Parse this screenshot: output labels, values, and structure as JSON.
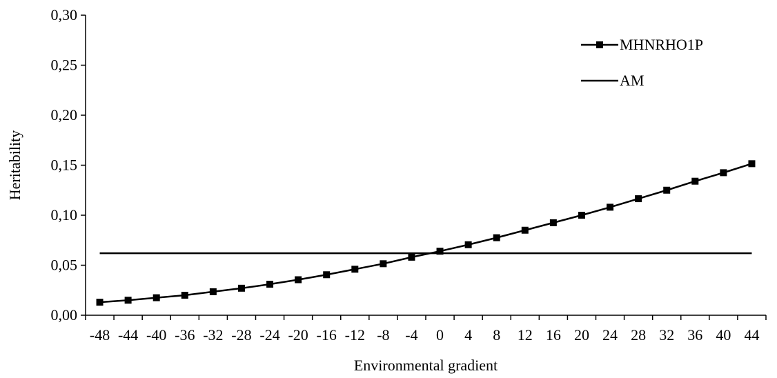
{
  "chart_data": {
    "type": "line",
    "title": "",
    "xlabel": "Environmental gradient",
    "ylabel": "Heritability",
    "ylim": [
      0,
      0.3
    ],
    "yticks": [
      "0,00",
      "0,05",
      "0,10",
      "0,15",
      "0,20",
      "0,25",
      "0,30"
    ],
    "yticks_values": [
      0,
      0.05,
      0.1,
      0.15,
      0.2,
      0.25,
      0.3
    ],
    "categories": [
      "-48",
      "-44",
      "-40",
      "-36",
      "-32",
      "-28",
      "-24",
      "-20",
      "-16",
      "-12",
      "-8",
      "-4",
      "0",
      "4",
      "8",
      "12",
      "16",
      "20",
      "24",
      "28",
      "32",
      "36",
      "40",
      "44"
    ],
    "series": [
      {
        "name": "MHNRHO1P",
        "marker": "square",
        "values": [
          0.013,
          0.015,
          0.0175,
          0.02,
          0.0235,
          0.027,
          0.031,
          0.0355,
          0.0405,
          0.046,
          0.0515,
          0.058,
          0.064,
          0.0705,
          0.0775,
          0.085,
          0.0925,
          0.1,
          0.108,
          0.1165,
          0.125,
          0.134,
          0.1425,
          0.1515
        ]
      },
      {
        "name": "AM",
        "marker": "none",
        "values": [
          0.062,
          0.062,
          0.062,
          0.062,
          0.062,
          0.062,
          0.062,
          0.062,
          0.062,
          0.062,
          0.062,
          0.062,
          0.062,
          0.062,
          0.062,
          0.062,
          0.062,
          0.062,
          0.062,
          0.062,
          0.062,
          0.062,
          0.062,
          0.062
        ]
      }
    ],
    "grid": false,
    "legend": "top-right",
    "color": "#000000"
  }
}
